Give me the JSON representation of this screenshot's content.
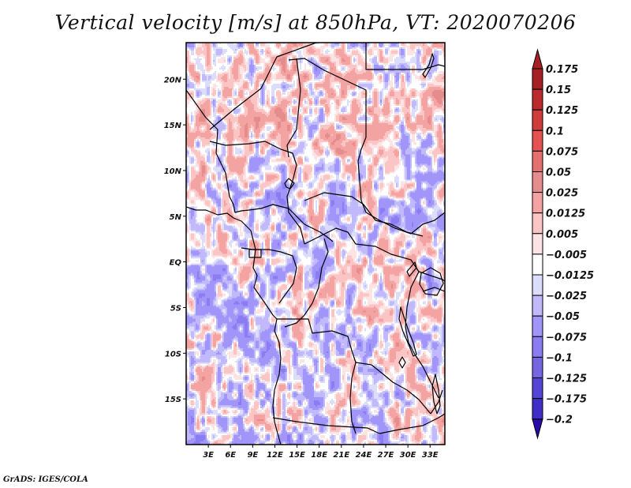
{
  "title": "Vertical velocity [m/s] at 850hPa, VT: 2020070206",
  "footer": "GrADS: IGES/COLA",
  "chart_data": {
    "type": "heatmap",
    "title": "Vertical velocity [m/s] at 850hPa, VT: 2020070206",
    "variable": "Vertical velocity",
    "units": "m/s",
    "level": "850hPa",
    "valid_time": "2020070206",
    "xlabel": "",
    "ylabel": "",
    "lon_range": [
      0,
      35
    ],
    "lat_range": [
      -20,
      24
    ],
    "x_ticks": [
      {
        "value": 3,
        "label": "3E"
      },
      {
        "value": 6,
        "label": "6E"
      },
      {
        "value": 9,
        "label": "9E"
      },
      {
        "value": 12,
        "label": "12E"
      },
      {
        "value": 15,
        "label": "15E"
      },
      {
        "value": 18,
        "label": "18E"
      },
      {
        "value": 21,
        "label": "21E"
      },
      {
        "value": 24,
        "label": "24E"
      },
      {
        "value": 27,
        "label": "27E"
      },
      {
        "value": 30,
        "label": "30E"
      },
      {
        "value": 33,
        "label": "33E"
      }
    ],
    "y_ticks": [
      {
        "value": 20,
        "label": "20N"
      },
      {
        "value": 15,
        "label": "15N"
      },
      {
        "value": 10,
        "label": "10N"
      },
      {
        "value": 5,
        "label": "5N"
      },
      {
        "value": 0,
        "label": "EQ"
      },
      {
        "value": -5,
        "label": "5S"
      },
      {
        "value": -10,
        "label": "10S"
      },
      {
        "value": -15,
        "label": "15S"
      }
    ],
    "colorbar": {
      "labels": [
        "0.175",
        "0.15",
        "0.125",
        "0.1",
        "0.075",
        "0.05",
        "0.025",
        "0.0125",
        "0.005",
        "-0.005",
        "-0.0125",
        "-0.025",
        "-0.05",
        "-0.075",
        "-0.1",
        "-0.125",
        "-0.175",
        "-0.2"
      ],
      "levels": [
        0.175,
        0.15,
        0.125,
        0.1,
        0.075,
        0.05,
        0.025,
        0.0125,
        0.005,
        -0.005,
        -0.0125,
        -0.025,
        -0.05,
        -0.075,
        -0.1,
        -0.125,
        -0.175,
        -0.2
      ],
      "colors": [
        "#a51f23",
        "#bb2a2c",
        "#cf3c3c",
        "#e45252",
        "#e6706e",
        "#e58d8d",
        "#f4a3a3",
        "#fbc5c5",
        "#fde4e4",
        "#ffffff",
        "#dcdcfb",
        "#c1b9fb",
        "#a195fa",
        "#8c7cf1",
        "#7666e1",
        "#5544d6",
        "#3f2fc6",
        "#2f1fae"
      ],
      "over_color": "#a51f23",
      "under_color": "#2a0aa8",
      "extend": "both"
    },
    "legend_position": "right"
  }
}
